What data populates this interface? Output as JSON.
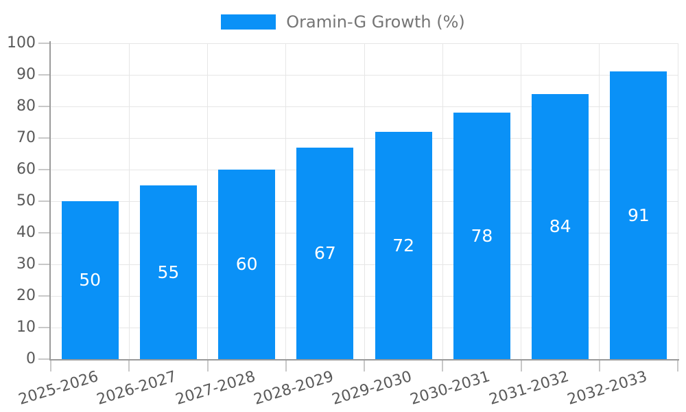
{
  "chart_data": {
    "type": "bar",
    "title": "",
    "xlabel": "",
    "ylabel": "",
    "legend": {
      "label": "Oramin-G Growth (%)",
      "position": "top-center"
    },
    "categories": [
      "2025-2026",
      "2026-2027",
      "2027-2028",
      "2028-2029",
      "2029-2030",
      "2030-2031",
      "2031-2032",
      "2032-2033"
    ],
    "values": [
      50,
      55,
      60,
      67,
      72,
      78,
      84,
      91
    ],
    "value_labels_shown": true,
    "ylim": [
      0,
      100
    ],
    "yticks": [
      0,
      10,
      20,
      30,
      40,
      50,
      60,
      70,
      80,
      90,
      100
    ],
    "grid": true,
    "colors": {
      "bar": "#0a91f7",
      "value_label": "#ffffff",
      "tick_label": "#595959",
      "legend_text": "#757575",
      "axis": "#9a9a9a",
      "gridline": "#e6e6e6",
      "tick_mark": "#c8c8c8",
      "background": "#ffffff"
    }
  }
}
